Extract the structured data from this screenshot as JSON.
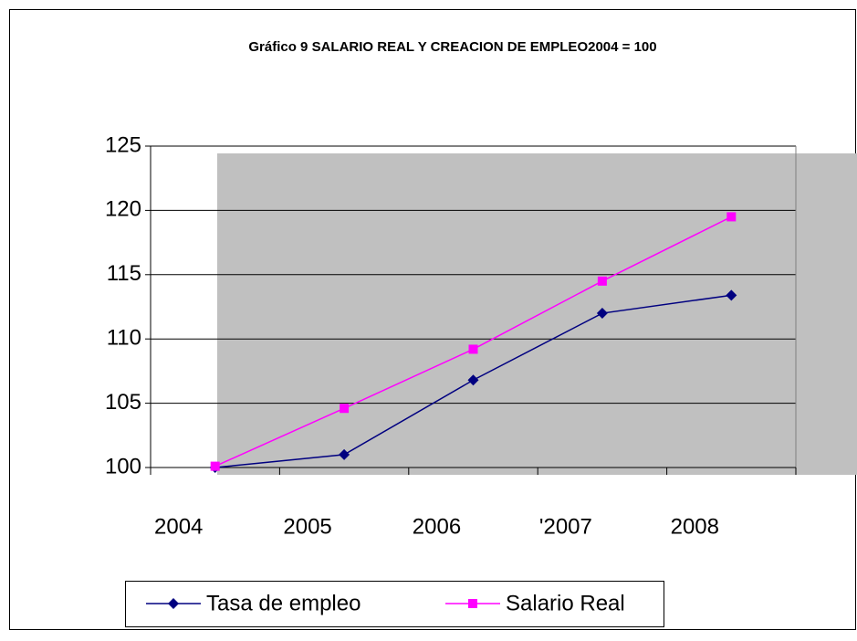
{
  "chart_data": {
    "type": "line",
    "title": "Gráfico 9 SALARIO REAL Y CREACION DE EMPLEO2004  =  100",
    "categories": [
      "2004",
      "2005",
      "2006",
      "'2007",
      "2008"
    ],
    "series": [
      {
        "name": "Tasa de empleo",
        "color": "#000080",
        "marker": "diamond",
        "values": [
          100,
          101,
          106.8,
          112,
          113.4
        ]
      },
      {
        "name": "Salario Real",
        "color": "#ff00ff",
        "marker": "square",
        "values": [
          100.1,
          104.6,
          109.2,
          114.5,
          119.5
        ]
      }
    ],
    "ylim": [
      100,
      125
    ],
    "yticks": [
      100,
      105,
      110,
      115,
      120,
      125
    ],
    "grid": true
  }
}
